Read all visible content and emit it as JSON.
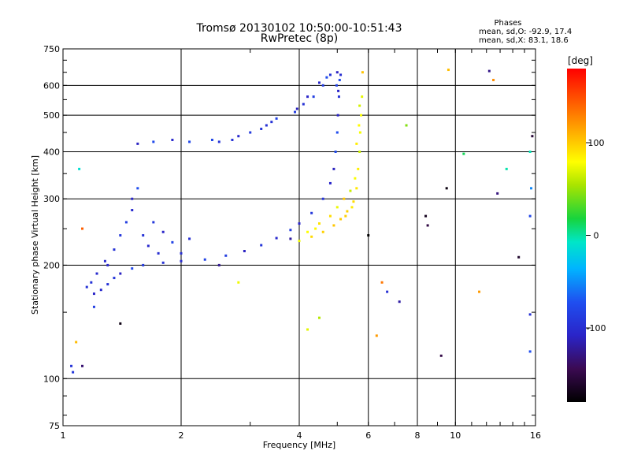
{
  "chart_data": {
    "type": "scatter",
    "title": "Tromsø 20130102 10:50:00-10:51:43",
    "subtitle": "RwPretec (8p)",
    "xlabel": "Frequency [MHz]",
    "ylabel": "Stationary phase Virtual Height [km]",
    "xscale": "log",
    "yscale": "log",
    "xlim": [
      1,
      16
    ],
    "ylim": [
      75,
      750
    ],
    "xticks": [
      {
        "value": 1,
        "label": "1"
      },
      {
        "value": 2,
        "label": "2"
      },
      {
        "value": 4,
        "label": "4"
      },
      {
        "value": 6,
        "label": "6"
      },
      {
        "value": 8,
        "label": "8"
      },
      {
        "value": 10,
        "label": "10"
      },
      {
        "value": 16,
        "label": "16"
      }
    ],
    "yticks": [
      {
        "value": 75,
        "label": "75"
      },
      {
        "value": 100,
        "label": "100"
      },
      {
        "value": 200,
        "label": "200"
      },
      {
        "value": 300,
        "label": "300"
      },
      {
        "value": 400,
        "label": "400"
      },
      {
        "value": 500,
        "label": "500"
      },
      {
        "value": 600,
        "label": "600"
      },
      {
        "value": 750,
        "label": "750"
      }
    ],
    "grid": true,
    "grid_x": [
      2,
      4,
      6,
      8,
      10
    ],
    "grid_y": [
      100,
      200,
      300,
      400,
      500,
      600
    ],
    "stats": {
      "title": "Phases",
      "line_o": "mean, sd,O: -92.9, 17.4",
      "line_x": "mean, sd,X:  83.1, 18.6"
    },
    "colorbar": {
      "label": "[deg]",
      "range": [
        -180,
        180
      ],
      "ticks": [
        {
          "value": 100,
          "label": "100"
        },
        {
          "value": 0,
          "label": "0"
        },
        {
          "value": -100,
          "label": "-100"
        }
      ]
    },
    "series": [
      {
        "mode": "O",
        "phase": -93,
        "points": [
          [
            1.05,
            108
          ],
          [
            1.06,
            104
          ],
          [
            1.2,
            168
          ],
          [
            1.25,
            172
          ],
          [
            1.3,
            178
          ],
          [
            1.35,
            185
          ],
          [
            1.4,
            190
          ],
          [
            1.5,
            196
          ],
          [
            1.6,
            200
          ],
          [
            1.8,
            203
          ],
          [
            2.0,
            205
          ],
          [
            2.3,
            207
          ],
          [
            2.6,
            212
          ],
          [
            2.9,
            218
          ],
          [
            3.2,
            226
          ],
          [
            3.5,
            236
          ],
          [
            3.8,
            248
          ],
          [
            4.0,
            258
          ],
          [
            4.3,
            275
          ],
          [
            4.6,
            300
          ],
          [
            4.8,
            330
          ],
          [
            4.9,
            360
          ],
          [
            4.95,
            400
          ],
          [
            5.0,
            450
          ],
          [
            5.02,
            500
          ],
          [
            5.05,
            560
          ],
          [
            5.07,
            620
          ],
          [
            1.3,
            200
          ],
          [
            1.35,
            220
          ],
          [
            1.4,
            240
          ],
          [
            1.45,
            260
          ],
          [
            1.5,
            280
          ],
          [
            1.5,
            300
          ],
          [
            1.55,
            320
          ],
          [
            1.6,
            240
          ],
          [
            1.65,
            225
          ],
          [
            1.7,
            260
          ],
          [
            1.75,
            215
          ],
          [
            1.8,
            245
          ],
          [
            1.9,
            230
          ],
          [
            2.0,
            215
          ],
          [
            2.1,
            235
          ],
          [
            1.55,
            420
          ],
          [
            1.7,
            425
          ],
          [
            1.9,
            430
          ],
          [
            2.1,
            425
          ],
          [
            2.5,
            425
          ],
          [
            2.8,
            440
          ],
          [
            3.0,
            450
          ],
          [
            3.3,
            470
          ],
          [
            3.5,
            490
          ],
          [
            3.9,
            510
          ],
          [
            4.2,
            560
          ],
          [
            4.5,
            610
          ],
          [
            4.8,
            640
          ],
          [
            5.0,
            650
          ],
          [
            3.95,
            520
          ],
          [
            4.1,
            535
          ],
          [
            4.35,
            560
          ],
          [
            4.6,
            600
          ],
          [
            4.7,
            630
          ],
          [
            5.1,
            640
          ],
          [
            3.4,
            480
          ],
          [
            3.2,
            460
          ],
          [
            2.7,
            430
          ],
          [
            2.4,
            430
          ],
          [
            1.15,
            175
          ],
          [
            1.18,
            180
          ],
          [
            1.22,
            190
          ],
          [
            1.28,
            205
          ],
          [
            4.98,
            600
          ],
          [
            5.03,
            580
          ]
        ]
      },
      {
        "mode": "X",
        "phase": 83,
        "points": [
          [
            4.0,
            232
          ],
          [
            4.3,
            238
          ],
          [
            4.6,
            245
          ],
          [
            4.9,
            255
          ],
          [
            5.1,
            265
          ],
          [
            5.3,
            278
          ],
          [
            5.5,
            295
          ],
          [
            5.6,
            320
          ],
          [
            5.65,
            360
          ],
          [
            5.7,
            400
          ],
          [
            5.72,
            450
          ],
          [
            5.75,
            500
          ],
          [
            5.78,
            560
          ],
          [
            4.2,
            245
          ],
          [
            4.5,
            258
          ],
          [
            4.8,
            270
          ],
          [
            5.0,
            285
          ],
          [
            5.2,
            300
          ],
          [
            5.4,
            315
          ],
          [
            5.55,
            340
          ],
          [
            5.6,
            420
          ],
          [
            5.68,
            470
          ],
          [
            5.7,
            530
          ],
          [
            5.8,
            650
          ],
          [
            4.4,
            250
          ],
          [
            5.25,
            270
          ],
          [
            5.45,
            285
          ]
        ]
      },
      {
        "mode": "scatter",
        "phase": 0,
        "points": [
          [
            1.1,
            360
          ],
          [
            1.12,
            108
          ],
          [
            1.08,
            125
          ],
          [
            1.12,
            250
          ],
          [
            1.2,
            155
          ],
          [
            1.4,
            140
          ],
          [
            2.5,
            200
          ],
          [
            2.8,
            180
          ],
          [
            4.2,
            135
          ],
          [
            4.5,
            145
          ],
          [
            6.5,
            180
          ],
          [
            6.7,
            170
          ],
          [
            6.3,
            130
          ],
          [
            7.2,
            160
          ],
          [
            8.4,
            270
          ],
          [
            8.5,
            255
          ],
          [
            9.5,
            320
          ],
          [
            10.5,
            395
          ],
          [
            11.5,
            170
          ],
          [
            12.5,
            620
          ],
          [
            12.2,
            655
          ],
          [
            13.5,
            360
          ],
          [
            14.5,
            210
          ],
          [
            15.5,
            270
          ],
          [
            15.5,
            400
          ],
          [
            15.7,
            440
          ],
          [
            15.6,
            320
          ],
          [
            15.5,
            148
          ],
          [
            15.5,
            118
          ],
          [
            9.6,
            660
          ],
          [
            12.8,
            310
          ],
          [
            3.8,
            235
          ],
          [
            6.0,
            240
          ],
          [
            7.5,
            470
          ],
          [
            9.2,
            115
          ]
        ]
      }
    ]
  }
}
